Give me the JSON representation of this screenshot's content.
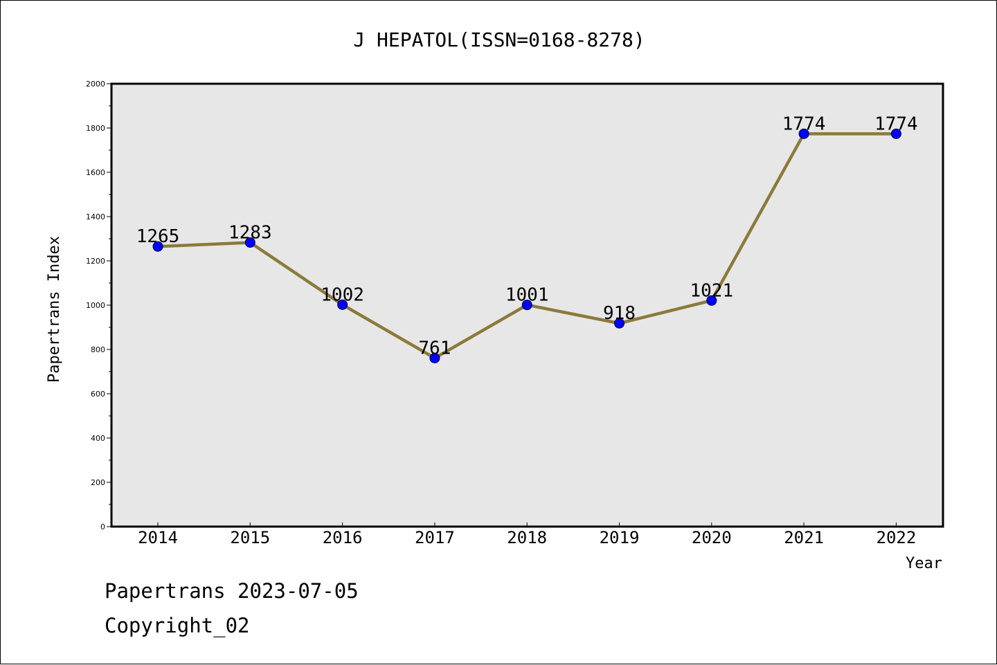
{
  "chart_data": {
    "type": "line",
    "title": "J HEPATOL(ISSN=0168-8278)",
    "xlabel": "Year",
    "ylabel": "Papertrans Index",
    "categories": [
      "2014",
      "2015",
      "2016",
      "2017",
      "2018",
      "2019",
      "2020",
      "2021",
      "2022"
    ],
    "series": [
      {
        "values": [
          1265,
          1283,
          1002,
          761,
          1001,
          918,
          1021,
          1774,
          1774
        ]
      }
    ],
    "data_labels": [
      "1265",
      "1283",
      "1002",
      "761",
      "1001",
      "918",
      "1021",
      "1774",
      "1774"
    ],
    "ylim": [
      0,
      2000
    ],
    "yticks": [
      0,
      200,
      400,
      600,
      800,
      1000,
      1200,
      1400,
      1600,
      1800,
      2000
    ],
    "grid": false,
    "colors": {
      "line": "#8B7A3A",
      "marker": "#0000FF",
      "plot_background": "#E7E7E7"
    }
  },
  "footer": {
    "date_line": "Papertrans 2023-07-05",
    "copyright_line": "Copyright_02"
  }
}
